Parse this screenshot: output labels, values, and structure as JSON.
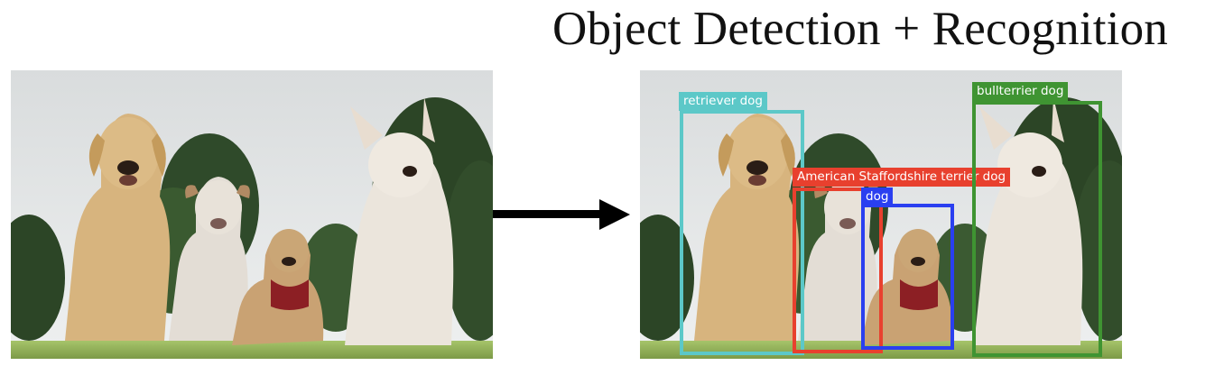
{
  "title": "Object Detection + Recognition",
  "detections": [
    {
      "label": "retriever dog",
      "color": "#5cc8c8"
    },
    {
      "label": "American Staffordshire terrier dog",
      "color": "#e8402e"
    },
    {
      "label": "dog",
      "color": "#2a3ff0"
    },
    {
      "label": "bullterrier dog",
      "color": "#3f9432"
    }
  ],
  "colors": {
    "arrow": "#000000"
  }
}
